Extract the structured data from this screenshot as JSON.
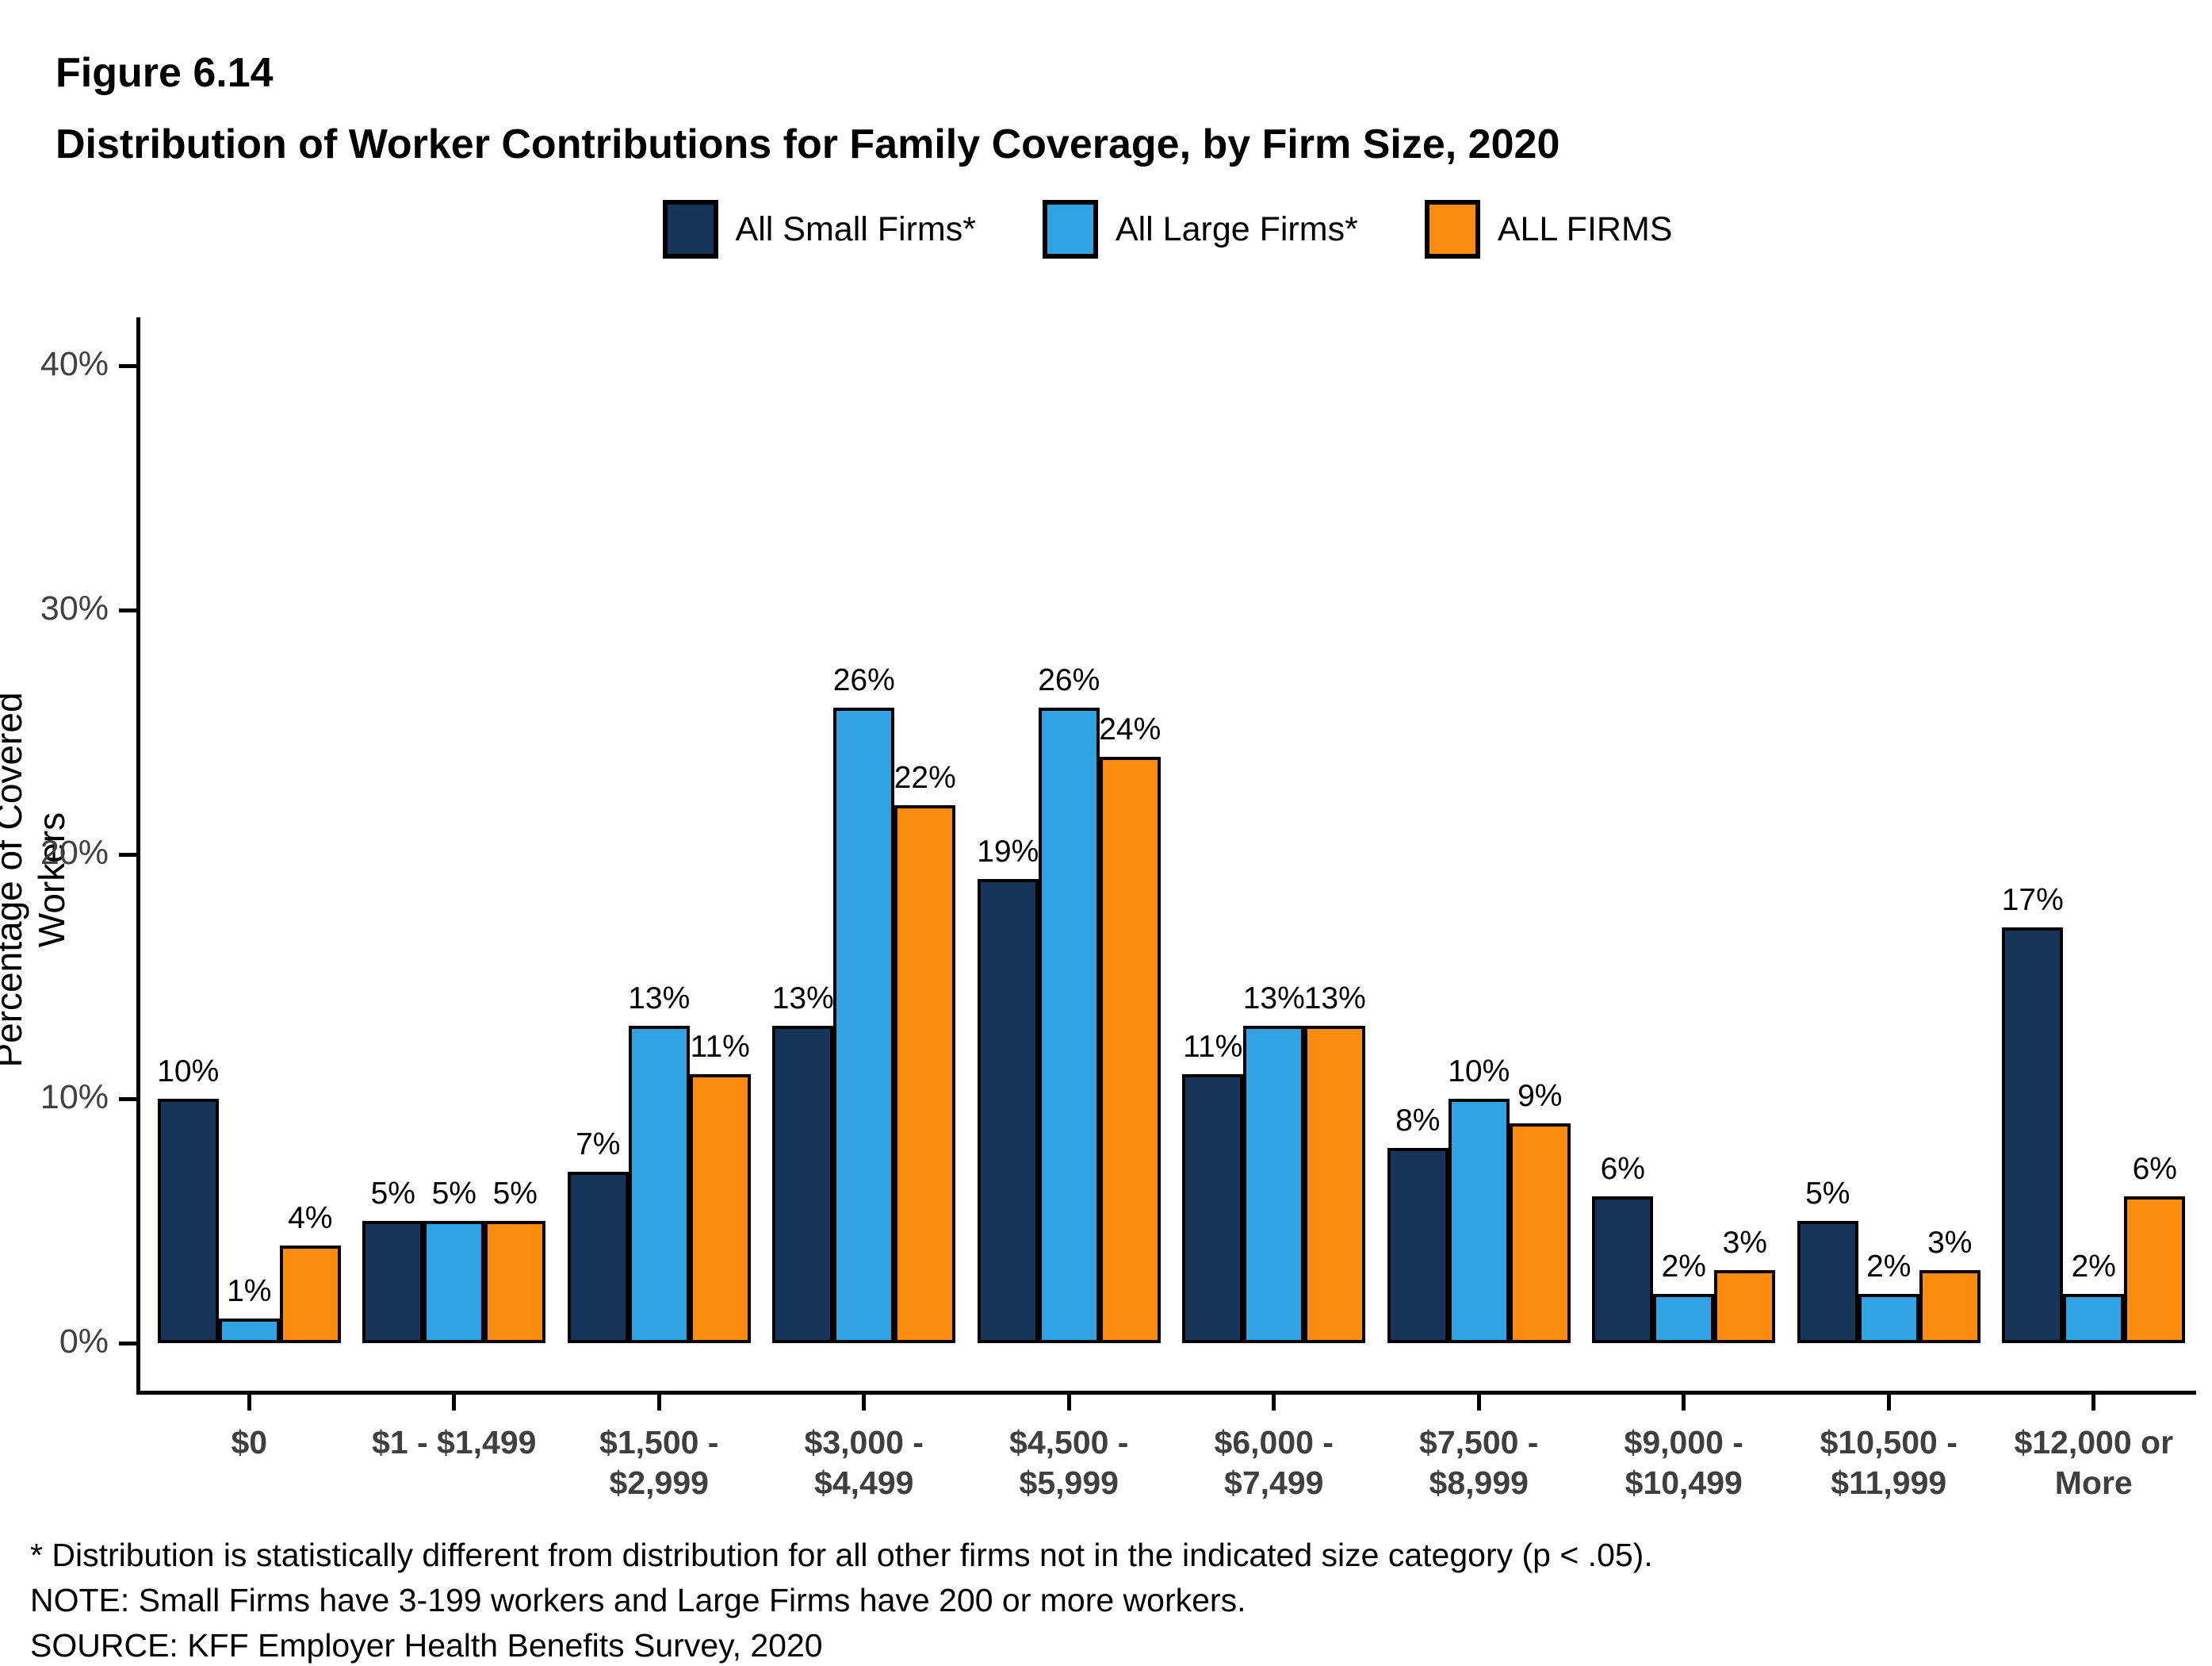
{
  "header": {
    "figure_label": "Figure 6.14",
    "title": "Distribution of Worker Contributions for Family Coverage, by Firm Size, 2020"
  },
  "legend": {
    "position": "top",
    "items": [
      {
        "label": "All Small Firms*",
        "color": "#173459"
      },
      {
        "label": "All Large Firms*",
        "color": "#32A3E2"
      },
      {
        "label": "ALL FIRMS",
        "color": "#FB8C10"
      }
    ]
  },
  "chart_data": {
    "type": "bar",
    "title": "Distribution of Worker Contributions for Family Coverage, by Firm Size, 2020",
    "xlabel": "",
    "ylabel": "Percentage of Covered Workers",
    "ylim": [
      0,
      42
    ],
    "yticks": [
      {
        "value": 0,
        "label": "0%"
      },
      {
        "value": 10,
        "label": "10%"
      },
      {
        "value": 20,
        "label": "20%"
      },
      {
        "value": 30,
        "label": "30%"
      },
      {
        "value": 40,
        "label": "40%"
      }
    ],
    "grid": false,
    "legend_position": "top",
    "value_label_suffix": "%",
    "categories": [
      [
        "$0"
      ],
      [
        "$1 - $1,499"
      ],
      [
        "$1,500 -",
        "$2,999"
      ],
      [
        "$3,000 -",
        "$4,499"
      ],
      [
        "$4,500 -",
        "$5,999"
      ],
      [
        "$6,000 -",
        "$7,499"
      ],
      [
        "$7,500 -",
        "$8,999"
      ],
      [
        "$9,000 -",
        "$10,499"
      ],
      [
        "$10,500 -",
        "$11,999"
      ],
      [
        "$12,000 or",
        "More"
      ]
    ],
    "series": [
      {
        "name": "All Small Firms*",
        "color": "#173459",
        "values": [
          10,
          5,
          7,
          13,
          19,
          11,
          8,
          6,
          5,
          17
        ]
      },
      {
        "name": "All Large Firms*",
        "color": "#32A3E2",
        "values": [
          1,
          5,
          13,
          26,
          26,
          13,
          10,
          2,
          2,
          2
        ]
      },
      {
        "name": "ALL FIRMS",
        "color": "#FB8C10",
        "values": [
          4,
          5,
          11,
          22,
          24,
          13,
          9,
          3,
          3,
          6
        ]
      }
    ]
  },
  "footnotes": [
    "* Distribution is statistically different from distribution for all other firms not in the indicated size category (p < .05).",
    "NOTE: Small Firms have 3-199 workers and Large Firms have 200 or more workers.",
    "SOURCE: KFF Employer Health Benefits Survey, 2020"
  ]
}
